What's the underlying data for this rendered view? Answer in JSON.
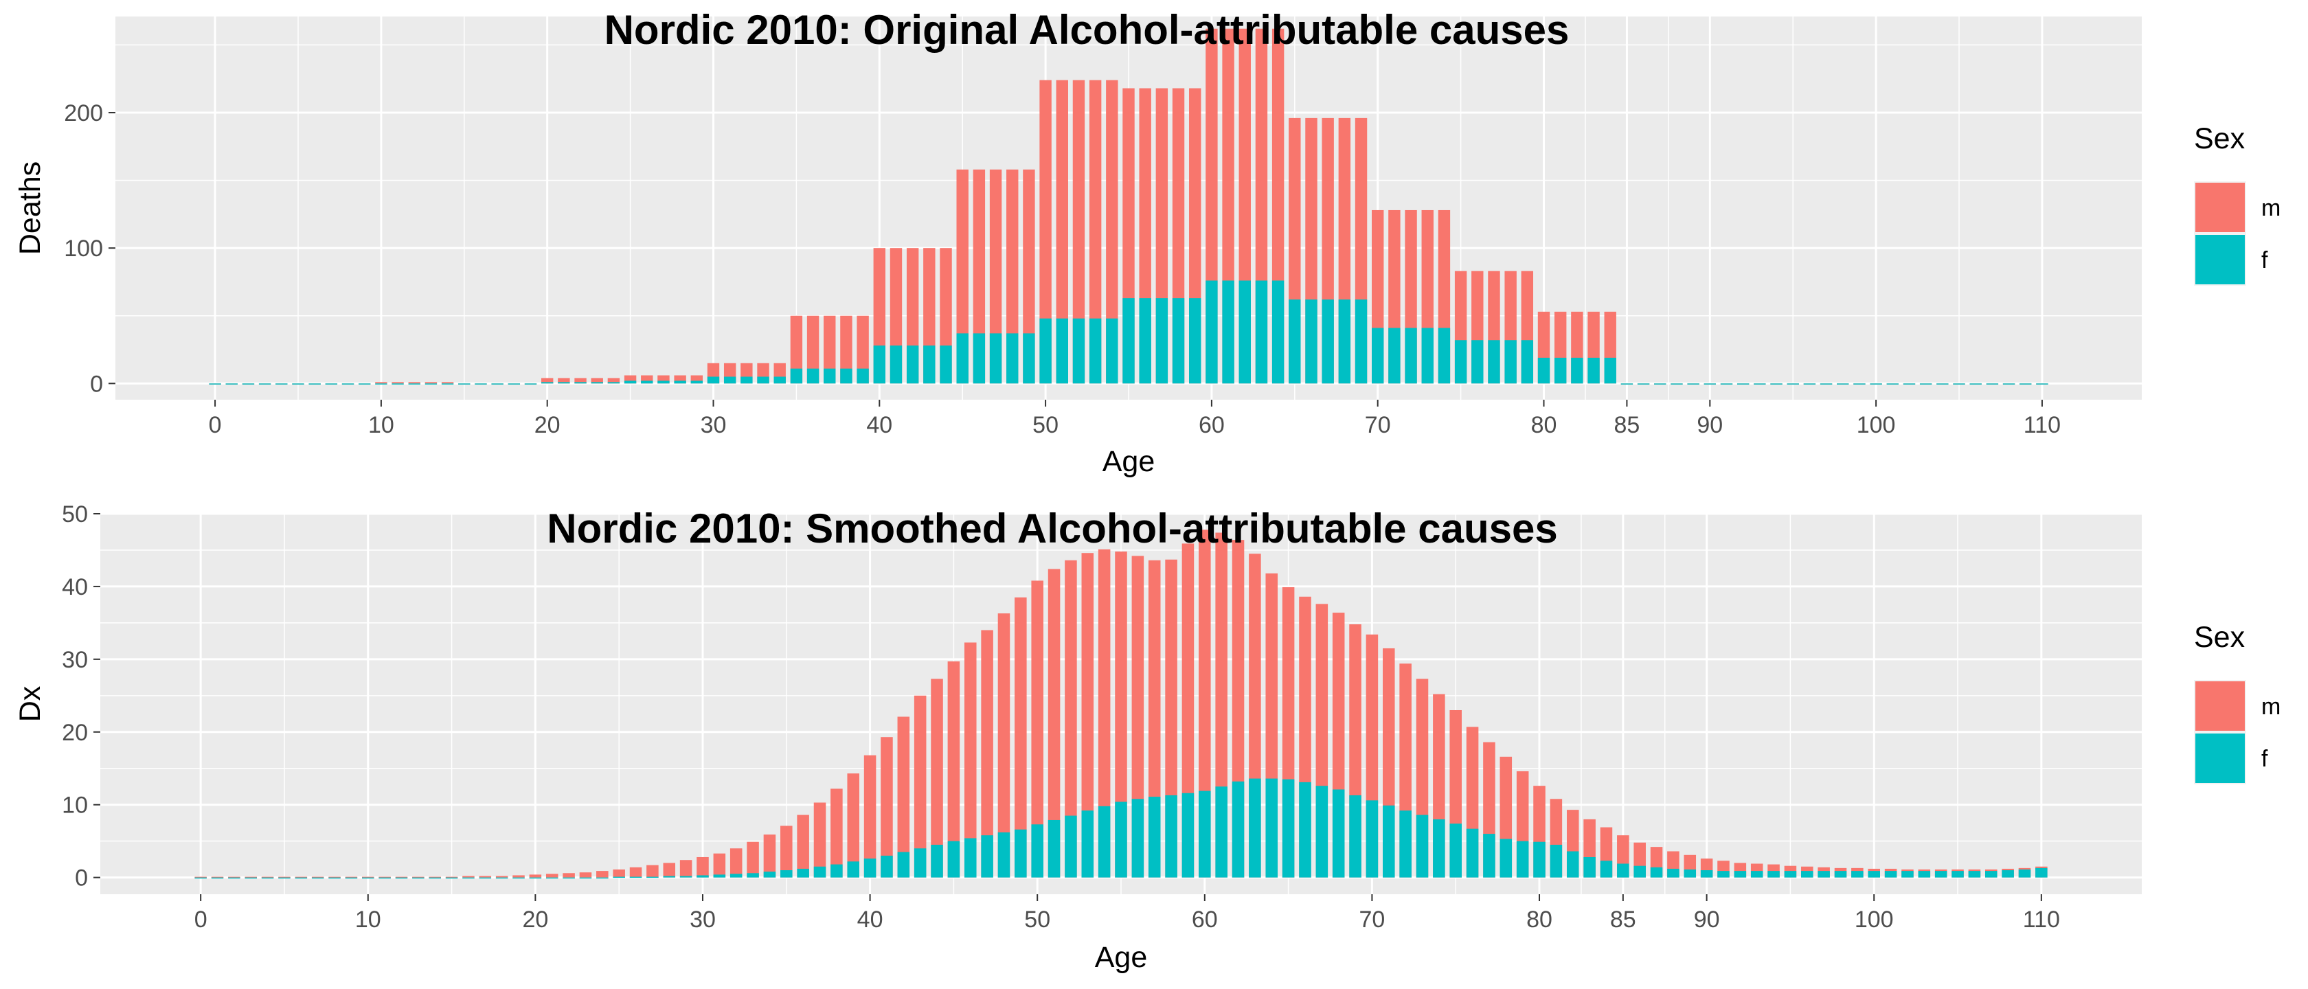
{
  "colors": {
    "m": "#F8766D",
    "f": "#00BFC4",
    "panel": "#EBEBEB",
    "grid": "#FFFFFF",
    "tick": "#333333"
  },
  "chart_data": [
    {
      "type": "bar",
      "stacking": "overlay",
      "title": "Nordic 2010: Original Alcohol-attributable causes",
      "xlabel": "Age",
      "ylabel": "Deaths",
      "xlim": [
        -6,
        116
      ],
      "ylim": [
        -12,
        271
      ],
      "xticks": [
        0,
        10,
        20,
        30,
        40,
        50,
        60,
        70,
        80,
        85,
        90,
        100,
        110
      ],
      "yticks": [
        0,
        100,
        200
      ],
      "ages": [
        0,
        1,
        2,
        3,
        4,
        5,
        6,
        7,
        8,
        9,
        10,
        11,
        12,
        13,
        14,
        15,
        16,
        17,
        18,
        19,
        20,
        21,
        22,
        23,
        24,
        25,
        26,
        27,
        28,
        29,
        30,
        31,
        32,
        33,
        34,
        35,
        36,
        37,
        38,
        39,
        40,
        41,
        42,
        43,
        44,
        45,
        46,
        47,
        48,
        49,
        50,
        51,
        52,
        53,
        54,
        55,
        56,
        57,
        58,
        59,
        60,
        61,
        62,
        63,
        64,
        65,
        66,
        67,
        68,
        69,
        70,
        71,
        72,
        73,
        74,
        75,
        76,
        77,
        78,
        79,
        80,
        81,
        82,
        83,
        84,
        85,
        86,
        87,
        88,
        89,
        90,
        91,
        92,
        93,
        94,
        95,
        96,
        97,
        98,
        99,
        100,
        101,
        102,
        103,
        104,
        105,
        106,
        107,
        108,
        109,
        110
      ],
      "series": [
        {
          "name": "m",
          "values": [
            0,
            0,
            0,
            0,
            0,
            0,
            0,
            0,
            0,
            0,
            1,
            1,
            1,
            1,
            1,
            0,
            0,
            0,
            0,
            0,
            4,
            4,
            4,
            4,
            4,
            6,
            6,
            6,
            6,
            6,
            15,
            15,
            15,
            15,
            15,
            50,
            50,
            50,
            50,
            50,
            100,
            100,
            100,
            100,
            100,
            158,
            158,
            158,
            158,
            158,
            224,
            224,
            224,
            224,
            224,
            218,
            218,
            218,
            218,
            218,
            262,
            262,
            262,
            262,
            262,
            196,
            196,
            196,
            196,
            196,
            128,
            128,
            128,
            128,
            128,
            83,
            83,
            83,
            83,
            83,
            53,
            53,
            53,
            53,
            53,
            0,
            0,
            0,
            0,
            0,
            0,
            0,
            0,
            0,
            0,
            0,
            0,
            0,
            0,
            0,
            0,
            0,
            0,
            0,
            0,
            0,
            0,
            0,
            0,
            0,
            0
          ]
        },
        {
          "name": "f",
          "values": [
            0,
            0,
            0,
            0,
            0,
            0,
            0,
            0,
            0,
            0,
            0,
            0,
            0,
            0,
            0,
            0,
            0,
            0,
            0,
            0,
            1,
            1,
            1,
            1,
            1,
            2,
            2,
            2,
            2,
            2,
            5,
            5,
            5,
            5,
            5,
            11,
            11,
            11,
            11,
            11,
            28,
            28,
            28,
            28,
            28,
            37,
            37,
            37,
            37,
            37,
            48,
            48,
            48,
            48,
            48,
            63,
            63,
            63,
            63,
            63,
            76,
            76,
            76,
            76,
            76,
            62,
            62,
            62,
            62,
            62,
            41,
            41,
            41,
            41,
            41,
            32,
            32,
            32,
            32,
            32,
            19,
            19,
            19,
            19,
            19,
            0,
            0,
            0,
            0,
            0,
            0,
            0,
            0,
            0,
            0,
            0,
            0,
            0,
            0,
            0,
            0,
            0,
            0,
            0,
            0,
            0,
            0,
            0,
            0,
            0,
            0
          ]
        }
      ],
      "legend": {
        "title": "Sex",
        "entries": [
          "m",
          "f"
        ],
        "position": "right"
      }
    },
    {
      "type": "bar",
      "stacking": "overlay",
      "title": "Nordic 2010: Smoothed Alcohol-attributable causes",
      "xlabel": "Age",
      "ylabel": "Dx",
      "xlim": [
        -6,
        116
      ],
      "ylim": [
        -2.3,
        50
      ],
      "xticks": [
        0,
        10,
        20,
        30,
        40,
        50,
        60,
        70,
        80,
        85,
        90,
        100,
        110
      ],
      "yticks": [
        0,
        10,
        20,
        30,
        40,
        50
      ],
      "ages": [
        0,
        1,
        2,
        3,
        4,
        5,
        6,
        7,
        8,
        9,
        10,
        11,
        12,
        13,
        14,
        15,
        16,
        17,
        18,
        19,
        20,
        21,
        22,
        23,
        24,
        25,
        26,
        27,
        28,
        29,
        30,
        31,
        32,
        33,
        34,
        35,
        36,
        37,
        38,
        39,
        40,
        41,
        42,
        43,
        44,
        45,
        46,
        47,
        48,
        49,
        50,
        51,
        52,
        53,
        54,
        55,
        56,
        57,
        58,
        59,
        60,
        61,
        62,
        63,
        64,
        65,
        66,
        67,
        68,
        69,
        70,
        71,
        72,
        73,
        74,
        75,
        76,
        77,
        78,
        79,
        80,
        81,
        82,
        83,
        84,
        85,
        86,
        87,
        88,
        89,
        90,
        91,
        92,
        93,
        94,
        95,
        96,
        97,
        98,
        99,
        100,
        101,
        102,
        103,
        104,
        105,
        106,
        107,
        108,
        109,
        110
      ],
      "series": [
        {
          "name": "m",
          "values": [
            0.1,
            0.1,
            0.1,
            0.1,
            0.1,
            0.1,
            0.1,
            0.1,
            0.1,
            0.1,
            0.1,
            0.1,
            0.1,
            0.1,
            0.1,
            0.1,
            0.2,
            0.2,
            0.2,
            0.3,
            0.4,
            0.5,
            0.6,
            0.7,
            0.9,
            1.1,
            1.4,
            1.7,
            2.0,
            2.4,
            2.8,
            3.3,
            4.0,
            4.9,
            5.9,
            7.1,
            8.6,
            10.3,
            12.2,
            14.3,
            16.8,
            19.3,
            22.1,
            25.0,
            27.3,
            29.7,
            32.3,
            34.0,
            36.3,
            38.5,
            40.8,
            42.4,
            43.6,
            44.6,
            45.1,
            44.8,
            44.2,
            43.6,
            43.7,
            45.9,
            47.8,
            47.4,
            46.4,
            44.5,
            41.8,
            39.9,
            38.6,
            37.6,
            36.4,
            34.8,
            33.4,
            31.5,
            29.4,
            27.3,
            25.2,
            23.0,
            20.7,
            18.6,
            16.6,
            14.6,
            12.6,
            10.8,
            9.3,
            8.0,
            6.9,
            5.8,
            4.8,
            4.2,
            3.6,
            3.1,
            2.6,
            2.3,
            2.0,
            1.9,
            1.8,
            1.6,
            1.5,
            1.4,
            1.3,
            1.3,
            1.2,
            1.2,
            1.1,
            1.1,
            1.1,
            1.1,
            1.1,
            1.1,
            1.2,
            1.3,
            1.5
          ]
        },
        {
          "name": "f",
          "values": [
            0,
            0,
            0,
            0,
            0,
            0,
            0,
            0,
            0,
            0,
            0,
            0,
            0,
            0,
            0,
            0,
            0,
            0,
            0,
            0,
            0,
            0,
            0,
            0,
            0,
            0.1,
            0.1,
            0.1,
            0.2,
            0.2,
            0.3,
            0.4,
            0.5,
            0.6,
            0.8,
            1.0,
            1.2,
            1.5,
            1.8,
            2.2,
            2.6,
            3.0,
            3.5,
            4.0,
            4.5,
            5.0,
            5.4,
            5.8,
            6.2,
            6.6,
            7.3,
            7.9,
            8.5,
            9.2,
            9.8,
            10.4,
            10.8,
            11.1,
            11.3,
            11.6,
            11.9,
            12.5,
            13.2,
            13.6,
            13.6,
            13.5,
            13.1,
            12.6,
            12.1,
            11.3,
            10.6,
            9.9,
            9.2,
            8.6,
            8.0,
            7.4,
            6.7,
            6.0,
            5.3,
            5.0,
            4.9,
            4.5,
            3.6,
            2.8,
            2.3,
            1.9,
            1.6,
            1.4,
            1.2,
            1.1,
            1.0,
            0.9,
            0.9,
            0.9,
            0.9,
            0.9,
            0.9,
            0.9,
            0.9,
            0.9,
            0.9,
            0.9,
            0.9,
            0.9,
            0.9,
            0.9,
            0.9,
            0.9,
            1.0,
            1.1,
            1.3
          ]
        }
      ],
      "legend": {
        "title": "Sex",
        "entries": [
          "m",
          "f"
        ],
        "position": "right"
      }
    }
  ]
}
